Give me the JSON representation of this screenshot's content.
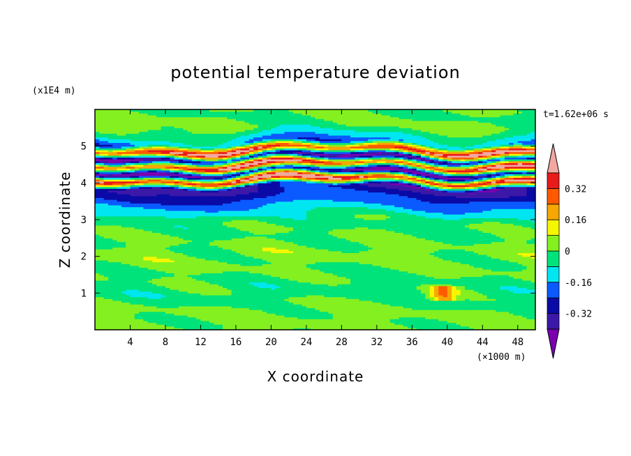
{
  "chart_data": {
    "type": "heatmap",
    "title": "potential temperature deviation",
    "xlabel": "X coordinate",
    "ylabel": "Z coordinate",
    "x_unit": "(×1000 m)",
    "y_unit": "(x1E4 m)",
    "time_label": "t=1.62e+06 s",
    "xlim": [
      0,
      50
    ],
    "ylim": [
      0,
      6
    ],
    "x_ticks": [
      4,
      8,
      12,
      16,
      20,
      24,
      28,
      32,
      36,
      40,
      44,
      48
    ],
    "y_ticks": [
      1,
      2,
      3,
      4,
      5
    ],
    "colorbar": {
      "levels": [
        -0.4,
        -0.32,
        -0.24,
        -0.16,
        -0.08,
        0,
        0.08,
        0.16,
        0.24,
        0.32,
        0.4
      ],
      "labels": [
        "0.32",
        "0.16",
        "0",
        "-0.16",
        "-0.32"
      ],
      "label_values": [
        0.32,
        0.16,
        0,
        -0.16,
        -0.32
      ],
      "colors": [
        "#7a00b0",
        "#3c18a8",
        "#0a0aa6",
        "#0a5aff",
        "#00e6f0",
        "#00e37a",
        "#84f020",
        "#f6f600",
        "#f6a800",
        "#ff5a00",
        "#e81a1a",
        "#f2a8a0"
      ],
      "extend": "both"
    },
    "bands": [
      {
        "z": 0.5,
        "field": 0.02
      },
      {
        "z": 1.0,
        "field": -0.04
      },
      {
        "z": 2.0,
        "field": 0.03
      },
      {
        "z": 3.0,
        "field": -0.03
      },
      {
        "z": 3.9,
        "field": -0.35
      },
      {
        "z": 4.1,
        "field": 0.45
      },
      {
        "z": 4.3,
        "field": -0.4
      },
      {
        "z": 4.5,
        "field": 0.42
      },
      {
        "z": 4.7,
        "field": -0.38
      },
      {
        "z": 4.9,
        "field": 0.4
      },
      {
        "z": 5.1,
        "field": -0.2
      },
      {
        "z": 5.5,
        "field": 0.0
      }
    ]
  }
}
